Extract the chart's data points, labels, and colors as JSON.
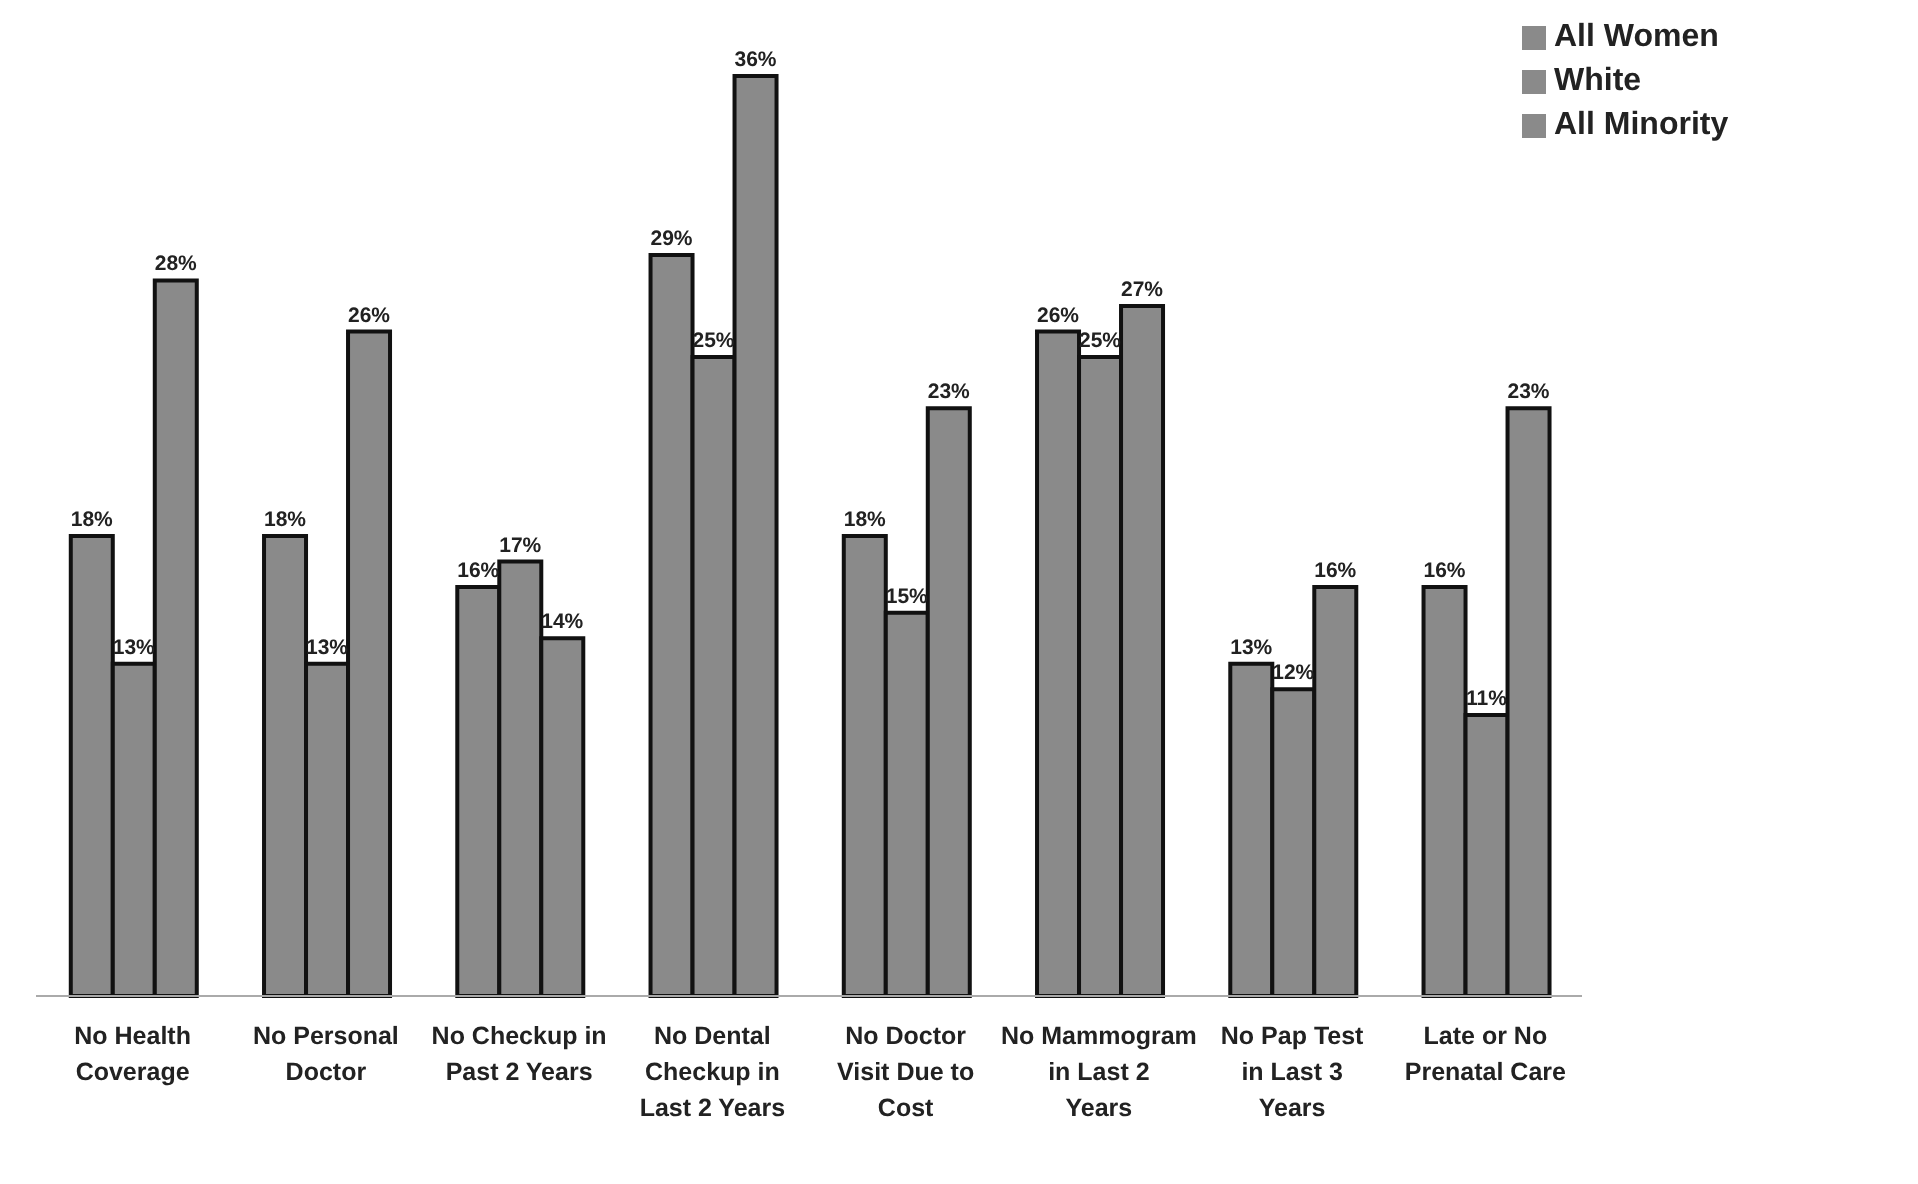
{
  "chart_data": {
    "type": "bar",
    "categories": [
      "No Health Coverage",
      "No Personal Doctor",
      "No Checkup in Past 2 Years",
      "No Dental Checkup in Last 2 Years",
      "No Doctor Visit Due to Cost",
      "No Mammogram in Last 2 Years",
      "No Pap Test in Last 3 Years",
      "Late or No Prenatal Care"
    ],
    "series": [
      {
        "name": "All Women",
        "color": "#8a8a8a",
        "values": [
          18,
          18,
          16,
          29,
          18,
          26,
          13,
          16
        ],
        "value_labels": [
          "18%",
          "18%",
          "16%",
          "29%",
          "18%",
          "26%",
          "13%",
          "16%"
        ]
      },
      {
        "name": "White",
        "color": "#8a8a8a",
        "values": [
          13,
          13,
          17,
          25,
          15,
          25,
          12,
          11
        ],
        "value_labels": [
          "13%",
          "13%",
          "17%",
          "25%",
          "15%",
          "25%",
          "12%",
          "11%"
        ]
      },
      {
        "name": "All Minority",
        "color": "#8a8a8a",
        "values": [
          28,
          26,
          14,
          36,
          23,
          27,
          16,
          23
        ],
        "value_labels": [
          "28%",
          "26%",
          "14%",
          "36%",
          "23%",
          "27%",
          "16%",
          "23%"
        ]
      }
    ],
    "legend": "top right"
  }
}
